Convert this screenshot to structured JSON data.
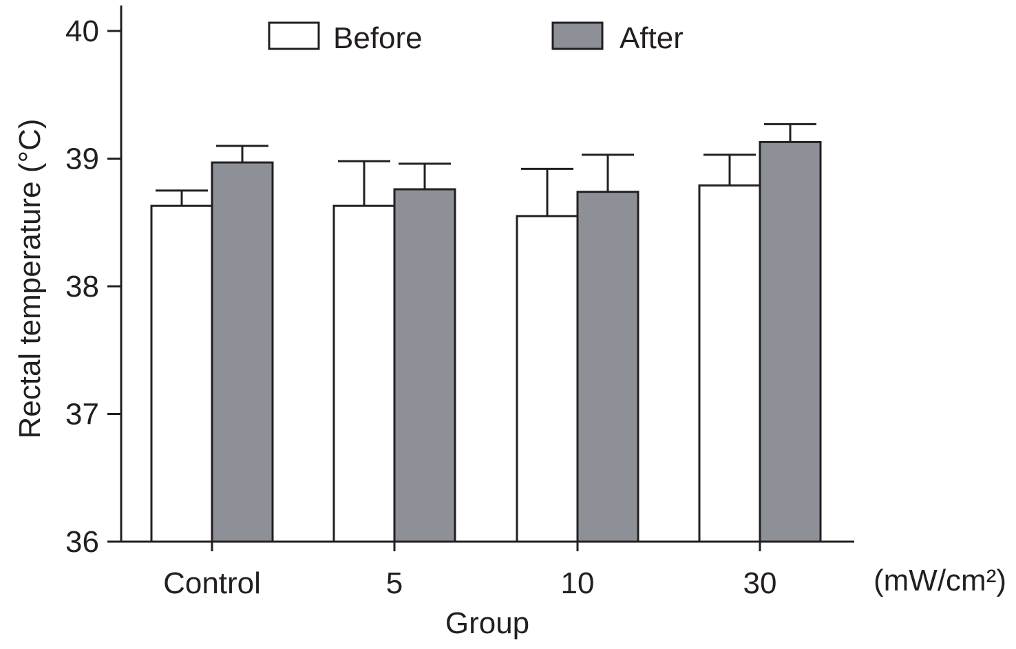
{
  "chart_data": {
    "type": "bar",
    "title": "",
    "xlabel": "Group",
    "ylabel": "Rectal temperature (°C)",
    "unit_label": "(mW/cm²)",
    "categories": [
      "Control",
      "5",
      "10",
      "30"
    ],
    "ylim": [
      36,
      40
    ],
    "yticks": [
      "36",
      "37",
      "38",
      "39",
      "40"
    ],
    "grid": false,
    "legend_position": "top",
    "series": [
      {
        "name": "Before",
        "color": "#ffffff",
        "values": [
          38.63,
          38.63,
          38.55,
          38.79
        ],
        "errors": [
          0.12,
          0.35,
          0.37,
          0.24
        ]
      },
      {
        "name": "After",
        "color": "#8e9097",
        "values": [
          38.97,
          38.76,
          38.74,
          39.13
        ],
        "errors": [
          0.13,
          0.2,
          0.29,
          0.14
        ]
      }
    ]
  }
}
